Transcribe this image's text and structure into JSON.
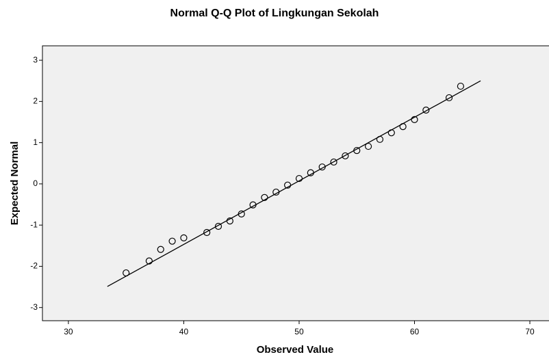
{
  "chart_data": {
    "type": "scatter",
    "title": "Normal Q-Q Plot of Lingkungan Sekolah",
    "x_label": "Observed Value",
    "y_label": "Expected Normal",
    "series": [
      {
        "color": "#000000",
        "x": [
          35,
          37,
          38,
          39,
          40,
          42,
          43,
          44,
          45,
          46,
          47,
          48,
          49,
          50,
          51,
          52,
          53,
          54,
          55,
          56,
          57,
          58,
          59,
          60,
          61,
          63,
          64
        ],
        "values": [
          -2.16,
          -1.87,
          -1.59,
          -1.39,
          -1.31,
          -1.18,
          -1.03,
          -0.9,
          -0.73,
          -0.51,
          -0.33,
          -0.2,
          -0.03,
          0.13,
          0.27,
          0.41,
          0.53,
          0.68,
          0.81,
          0.91,
          1.08,
          1.24,
          1.39,
          1.56,
          1.79,
          2.09,
          2.37
        ]
      }
    ],
    "fit_line": {
      "color": "#000000",
      "x": [
        33.38,
        65.73
      ],
      "values": [
        -2.49,
        2.5
      ]
    },
    "xlim": [
      27.75,
      71.6
    ],
    "xticks": [
      30,
      40,
      50,
      60,
      70
    ],
    "ylim": [
      -3.32,
      3.35
    ],
    "yticks": [
      -3,
      -2,
      -1,
      0,
      1,
      2,
      3
    ],
    "plot_background": "#f0f0f0"
  }
}
